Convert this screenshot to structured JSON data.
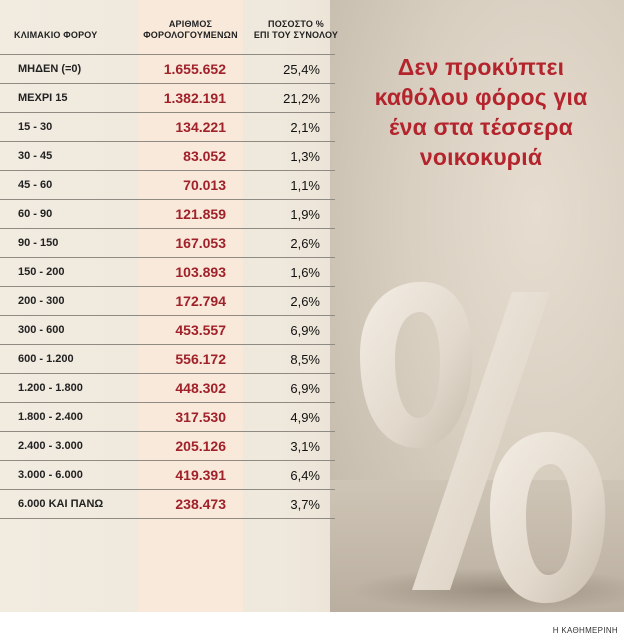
{
  "headline": "Δεν προκύπτει καθόλου φόρος για ένα στα τέσσερα νοικοκυριά",
  "source": "Η ΚΑΘΗΜΕΡΙΝΗ",
  "colors": {
    "accent": "#a0212a",
    "headline": "#b3242d",
    "highlight_column": "#f8e9da"
  },
  "chart_data": {
    "type": "table",
    "columns": [
      "ΚΛΙΜΑΚΙΟ ΦΟΡΟΥ",
      "ΑΡΙΘΜΟΣ ΦΟΡΟΛΟΓΟΥΜΕΝΩΝ",
      "ΠΟΣΟΣΤΟ % ΕΠΙ ΤΟΥ ΣΥΝΟΛΟΥ"
    ],
    "column_lines": [
      [
        "ΚΛΙΜΑΚΙΟ ΦΟΡΟΥ"
      ],
      [
        "ΑΡΙΘΜΟΣ",
        "ΦΟΡΟΛΟΓΟΥΜΕΝΩΝ"
      ],
      [
        "ΠΟΣΟΣΤΟ %",
        "ΕΠΙ ΤΟΥ ΣΥΝΟΛΟΥ"
      ]
    ],
    "rows": [
      {
        "bracket": "ΜΗΔΕΝ (=0)",
        "count": "1.655.652",
        "pct": "25,4%"
      },
      {
        "bracket": "ΜΕΧΡΙ 15",
        "count": "1.382.191",
        "pct": "21,2%"
      },
      {
        "bracket": "15 - 30",
        "count": "134.221",
        "pct": "2,1%"
      },
      {
        "bracket": "30 - 45",
        "count": "83.052",
        "pct": "1,3%"
      },
      {
        "bracket": "45 - 60",
        "count": "70.013",
        "pct": "1,1%"
      },
      {
        "bracket": "60 - 90",
        "count": "121.859",
        "pct": "1,9%"
      },
      {
        "bracket": "90 - 150",
        "count": "167.053",
        "pct": "2,6%"
      },
      {
        "bracket": "150 - 200",
        "count": "103.893",
        "pct": "1,6%"
      },
      {
        "bracket": "200 - 300",
        "count": "172.794",
        "pct": "2,6%"
      },
      {
        "bracket": "300 - 600",
        "count": "453.557",
        "pct": "6,9%"
      },
      {
        "bracket": "600 - 1.200",
        "count": "556.172",
        "pct": "8,5%"
      },
      {
        "bracket": "1.200 - 1.800",
        "count": "448.302",
        "pct": "6,9%"
      },
      {
        "bracket": "1.800 - 2.400",
        "count": "317.530",
        "pct": "4,9%"
      },
      {
        "bracket": "2.400 - 3.000",
        "count": "205.126",
        "pct": "3,1%"
      },
      {
        "bracket": "3.000 - 6.000",
        "count": "419.391",
        "pct": "6,4%"
      },
      {
        "bracket": "6.000 ΚΑΙ ΠΑΝΩ",
        "count": "238.473",
        "pct": "3,7%"
      }
    ]
  }
}
